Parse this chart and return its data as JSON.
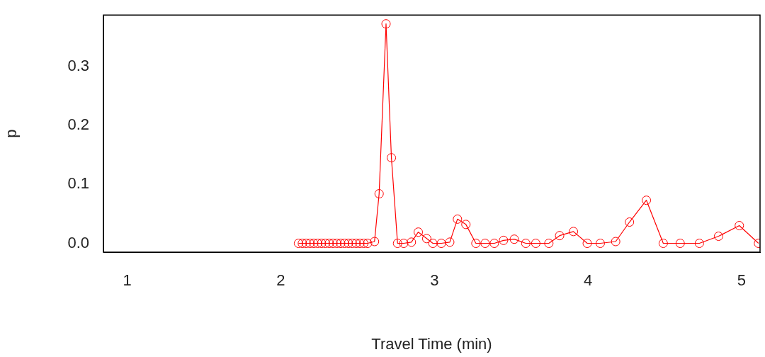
{
  "chart_data": {
    "type": "line",
    "xlabel": "Travel Time (min)",
    "ylabel": "p",
    "marker": "circle",
    "line_style": "solid",
    "grid": false,
    "legend": false,
    "xlim": [
      0.845,
      5.12
    ],
    "xticks": [
      1,
      2,
      3,
      4,
      5
    ],
    "ylim": [
      -0.015,
      0.387
    ],
    "yticks": [
      {
        "value": 0,
        "label": "0.0"
      },
      {
        "value": 0.1,
        "label": "0.1"
      },
      {
        "value": 0.2,
        "label": "0.2"
      },
      {
        "value": 0.3,
        "label": "0.3"
      }
    ],
    "series": [
      {
        "color": "#ff0000",
        "x": [
          2.115,
          2.14,
          2.165,
          2.19,
          2.215,
          2.24,
          2.265,
          2.29,
          2.315,
          2.34,
          2.365,
          2.39,
          2.415,
          2.44,
          2.465,
          2.49,
          2.515,
          2.54,
          2.565,
          2.61,
          2.64,
          2.685,
          2.72,
          2.76,
          2.8,
          2.85,
          2.895,
          2.95,
          2.99,
          3.045,
          3.1,
          3.15,
          3.205,
          3.27,
          3.33,
          3.39,
          3.45,
          3.52,
          3.595,
          3.66,
          3.745,
          3.815,
          3.905,
          3.995,
          4.08,
          4.18,
          4.27,
          4.38,
          4.49,
          4.6,
          4.725,
          4.85,
          4.985,
          5.11
        ],
        "values": [
          0,
          0,
          0,
          0,
          0,
          0,
          0,
          0,
          0,
          0,
          0,
          0,
          0,
          0,
          0,
          0,
          0,
          0,
          0,
          0.003,
          0.084,
          0.372,
          0.145,
          0,
          0,
          0.002,
          0.019,
          0.008,
          0,
          0,
          0.002,
          0.041,
          0.032,
          0,
          0,
          0,
          0.005,
          0.007,
          0,
          0,
          0,
          0.013,
          0.02,
          0,
          0,
          0.003,
          0.036,
          0.073,
          0,
          0,
          0,
          0.012,
          0.03,
          0
        ]
      }
    ]
  }
}
